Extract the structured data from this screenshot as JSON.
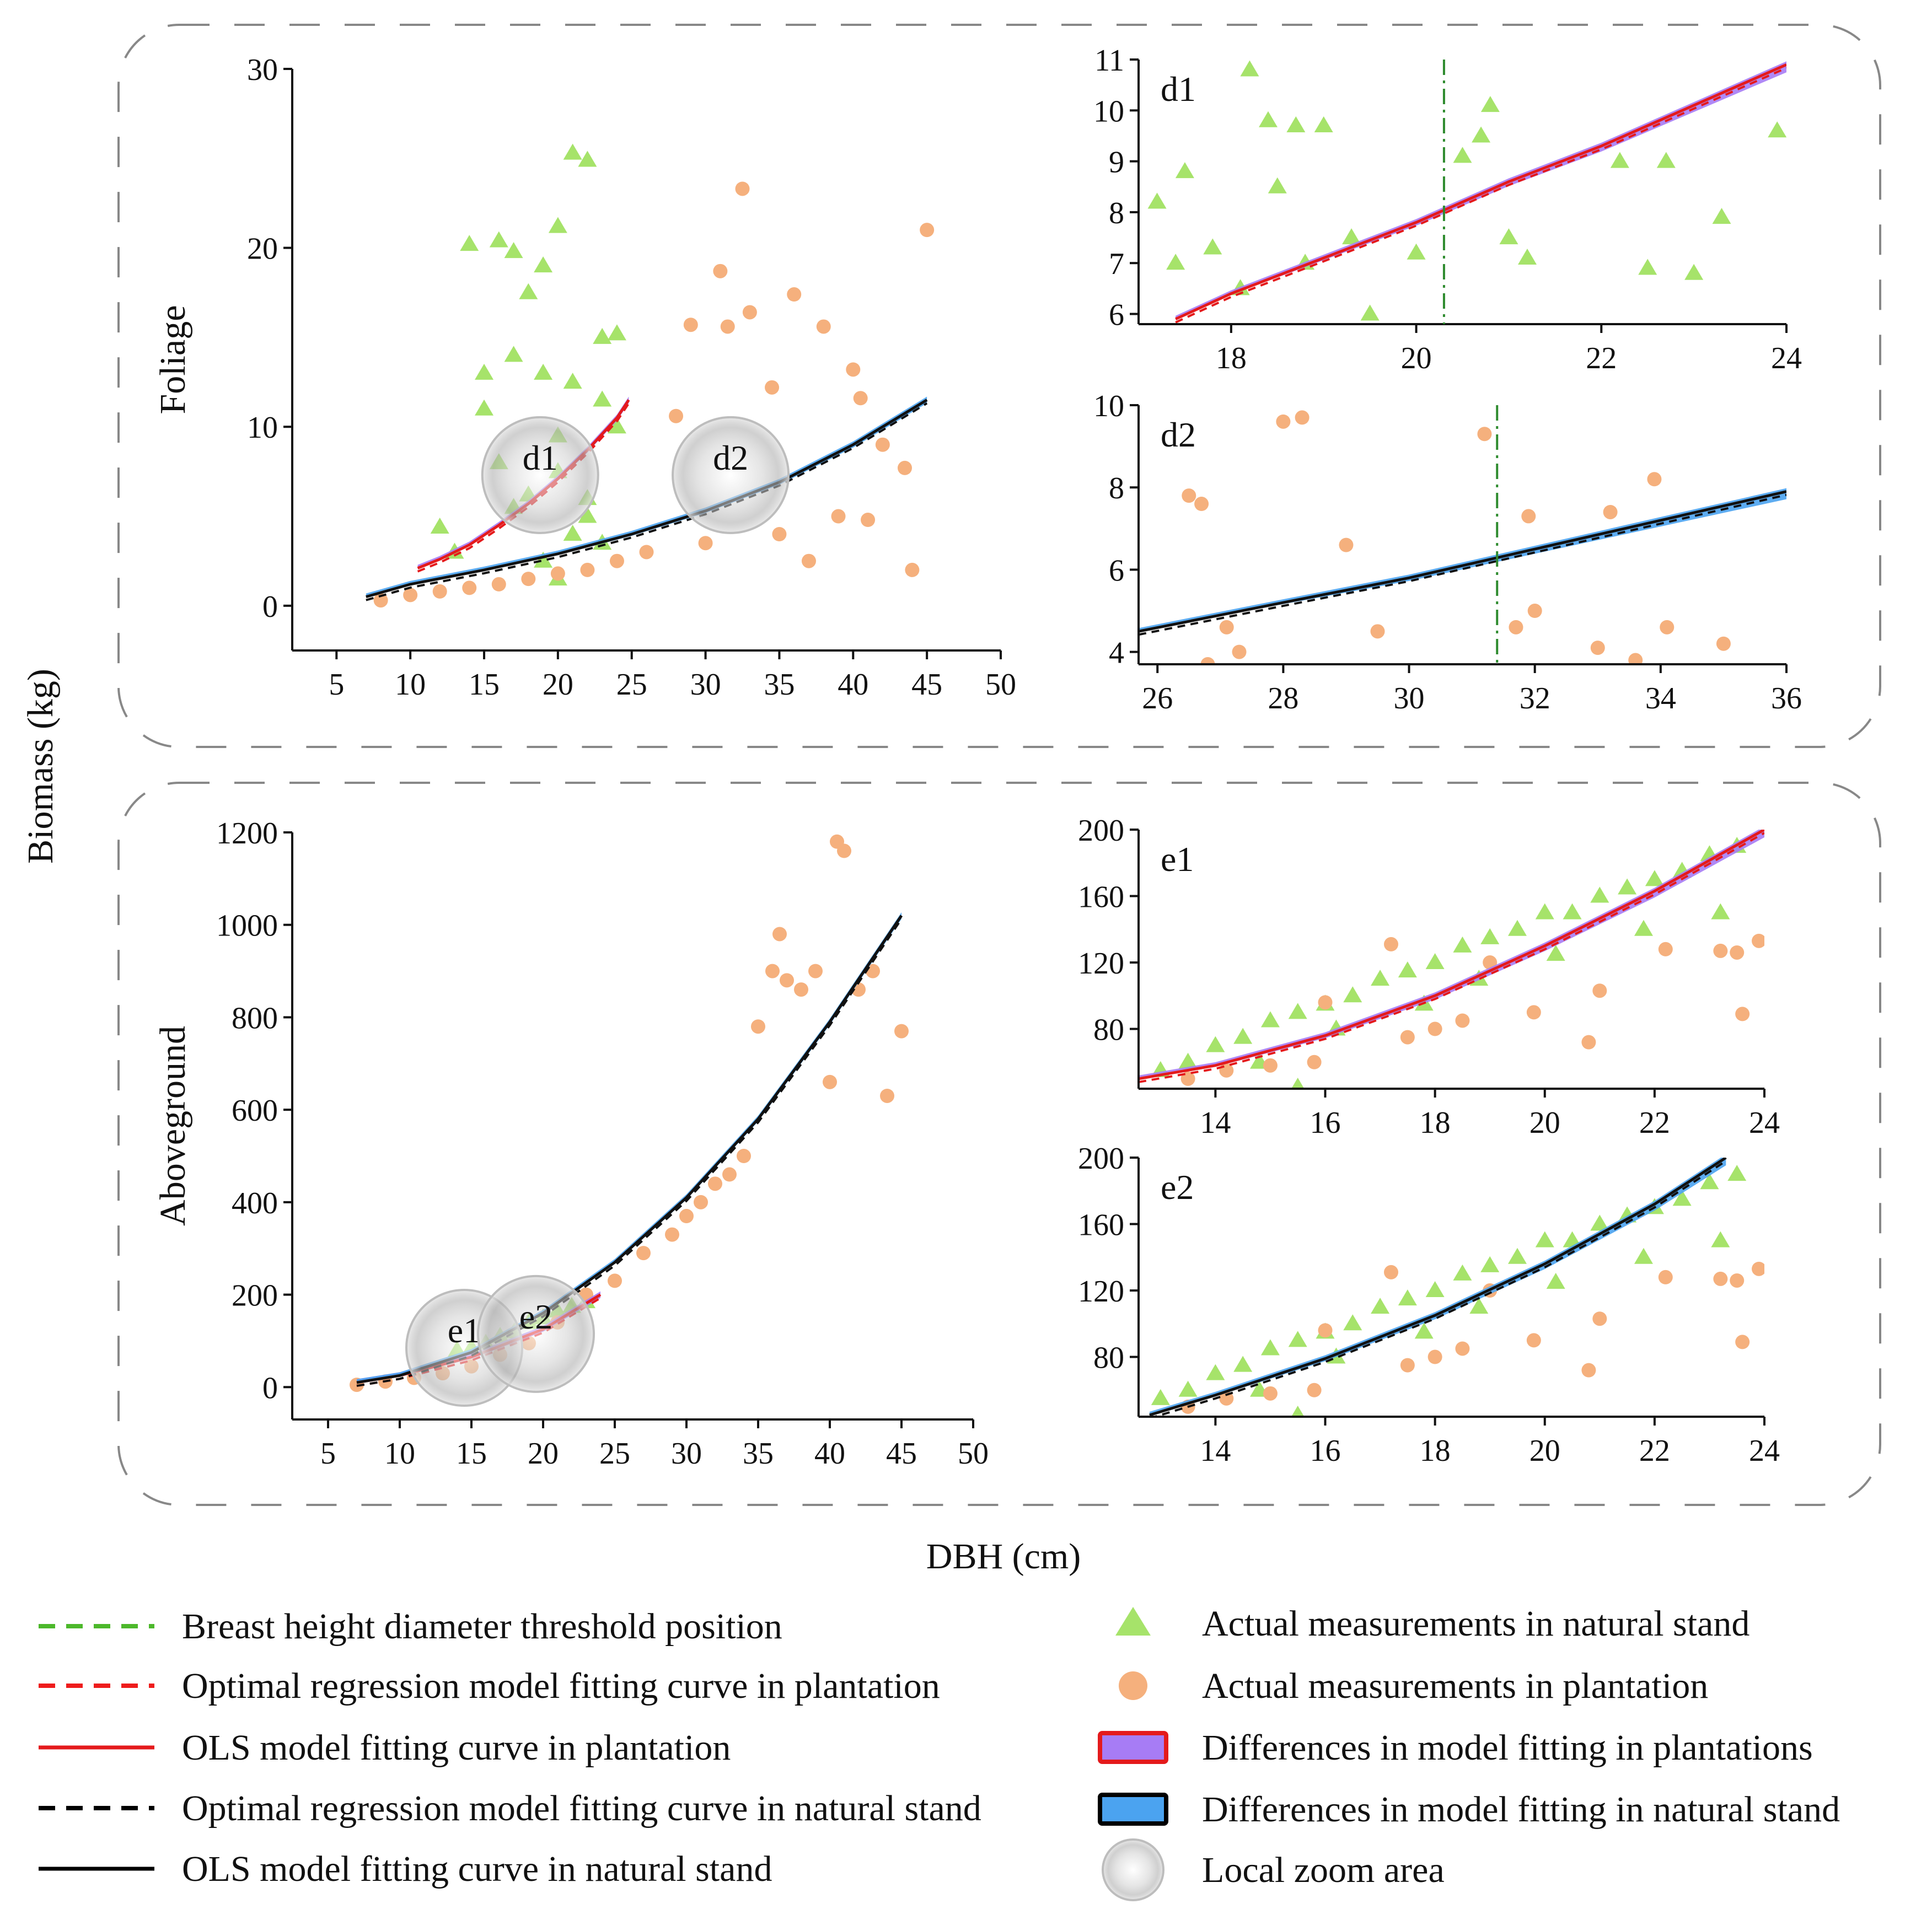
{
  "labels": {
    "y_common": "Biomass (kg)",
    "x_common": "DBH (cm)"
  },
  "legend": [
    {
      "id": "threshold",
      "label": "Breast height diameter threshold position",
      "kind": "dash",
      "color": "#4cb82b"
    },
    {
      "id": "opt_plant",
      "label": "Optimal regression model fitting curve in plantation",
      "kind": "dash",
      "color": "#ee1c1c"
    },
    {
      "id": "ols_plant",
      "label": "OLS model fitting curve in plantation",
      "kind": "line",
      "color": "#e41a1c"
    },
    {
      "id": "opt_nat",
      "label": "Optimal regression model fitting curve in natural stand",
      "kind": "dash",
      "color": "#000000"
    },
    {
      "id": "ols_nat",
      "label": "OLS model fitting curve in natural stand",
      "kind": "line",
      "color": "#000000"
    },
    {
      "id": "nat_pts",
      "label": "Actual measurements in natural stand",
      "kind": "triangle",
      "color": "#a6e36a"
    },
    {
      "id": "plant_pts",
      "label": "Actual measurements in plantation",
      "kind": "circle",
      "color": "#f5b07d"
    },
    {
      "id": "diff_plant",
      "label": "Differences in model fitting in plantations",
      "kind": "box",
      "color": "#a77cf5",
      "edge": "#e41a1c"
    },
    {
      "id": "diff_nat",
      "label": "Differences in model fitting in natural stand",
      "kind": "box",
      "color": "#4ba3f0",
      "edge": "#000000"
    },
    {
      "id": "zoom",
      "label": "Local zoom area",
      "kind": "sphere",
      "color": "#d0d0d0"
    }
  ],
  "chart_data": [
    {
      "id": "foliage",
      "type": "scatter",
      "ylabel": "Foliage",
      "xlabel": "",
      "xlim": [
        2,
        50
      ],
      "ylim": [
        -2.5,
        30
      ],
      "xticks": [
        "5",
        "10",
        "15",
        "20",
        "25",
        "30",
        "35",
        "40",
        "45",
        "50"
      ],
      "yticks": [
        "0",
        "10",
        "20",
        "30"
      ],
      "series": [
        {
          "name": "Actual measurements in natural stand",
          "marker": "triangle",
          "x": [
            14,
            15,
            16,
            17,
            18,
            19,
            20,
            21,
            22,
            23,
            24,
            15,
            17,
            19,
            21,
            23,
            12,
            16,
            20,
            24,
            18,
            20,
            22,
            13,
            17,
            21,
            19,
            22,
            23,
            20
          ],
          "y": [
            20.2,
            13,
            20.4,
            19.8,
            17.5,
            19,
            21.2,
            25.3,
            24.9,
            15,
            15.2,
            11,
            14,
            13,
            12.5,
            11.5,
            4.4,
            8,
            9.5,
            10,
            6.2,
            7.5,
            5,
            3,
            5.5,
            4,
            2.5,
            6,
            3.5,
            1.5
          ]
        },
        {
          "name": "Actual measurements in plantation",
          "marker": "circle",
          "x": [
            8,
            10,
            12,
            14,
            16,
            18,
            20,
            22,
            24,
            26,
            28,
            29,
            31,
            31.5,
            32.5,
            33,
            34.5,
            36,
            38,
            40,
            40.5,
            42,
            43.5,
            44,
            45,
            30,
            35,
            37,
            39,
            41
          ],
          "y": [
            0.3,
            0.6,
            0.8,
            1,
            1.2,
            1.5,
            1.8,
            2,
            2.5,
            3,
            10.6,
            15.7,
            18.7,
            15.6,
            23.3,
            16.4,
            12.2,
            17.4,
            15.6,
            13.2,
            11.6,
            9,
            7.7,
            2,
            21,
            3.5,
            4,
            2.5,
            5,
            4.8
          ]
        },
        {
          "name": "OLS model fitting curve in plantation",
          "type": "line",
          "x": [
            10.5,
            12,
            14,
            16,
            18,
            20,
            22,
            24,
            24.8
          ],
          "y": [
            2.1,
            2.6,
            3.4,
            4.5,
            5.7,
            7.1,
            8.7,
            10.5,
            11.5
          ]
        },
        {
          "name": "OLS model fitting curve in natural stand",
          "type": "line",
          "x": [
            7,
            10,
            15,
            20,
            25,
            30,
            35,
            40,
            45
          ],
          "y": [
            0.5,
            1.2,
            2,
            2.9,
            4,
            5.3,
            6.9,
            9,
            11.5
          ]
        }
      ],
      "zoom_areas": [
        {
          "label": "d1",
          "x": 18.8,
          "y": 7.3
        },
        {
          "label": "d2",
          "x": 31.7,
          "y": 7.3
        }
      ]
    },
    {
      "id": "d1",
      "type": "scatter",
      "tag": "d1",
      "xlim": [
        17,
        24
      ],
      "ylim": [
        5.8,
        11
      ],
      "xticks": [
        "18",
        "20",
        "22",
        "24"
      ],
      "yticks": [
        "6",
        "7",
        "8",
        "9",
        "10",
        "11"
      ],
      "threshold": 20.3,
      "series": [
        {
          "name": "Actual measurements in natural stand",
          "marker": "triangle",
          "x": [
            17.2,
            17.5,
            18.2,
            18.4,
            18.5,
            18.7,
            19,
            17.8,
            18.8,
            19.3,
            19.5,
            20,
            20.5,
            20.7,
            20.8,
            21,
            21.2,
            22.2,
            22.5,
            22.7,
            23,
            23.3,
            23.9,
            17.4,
            18.1
          ],
          "y": [
            8.2,
            8.8,
            10.8,
            9.8,
            8.5,
            9.7,
            9.7,
            7.3,
            7,
            7.5,
            6,
            7.2,
            9.1,
            9.5,
            10.1,
            7.5,
            7.1,
            9,
            6.9,
            9,
            6.8,
            7.9,
            9.6,
            7,
            6.5
          ]
        },
        {
          "name": "OLS model fitting curve in plantation",
          "type": "line",
          "x": [
            17.4,
            18,
            19,
            20,
            21,
            22,
            23,
            24
          ],
          "y": [
            5.9,
            6.4,
            7.1,
            7.8,
            8.6,
            9.3,
            10.1,
            10.9
          ]
        }
      ]
    },
    {
      "id": "d2",
      "type": "scatter",
      "tag": "d2",
      "xlim": [
        25.7,
        36
      ],
      "ylim": [
        3.7,
        10
      ],
      "xticks": [
        "26",
        "28",
        "30",
        "32",
        "34",
        "36"
      ],
      "yticks": [
        "4",
        "6",
        "8",
        "10"
      ],
      "threshold": 31.4,
      "series": [
        {
          "name": "Actual measurements in plantation",
          "marker": "circle",
          "x": [
            26.5,
            26.7,
            27.3,
            28,
            28.3,
            29,
            29.5,
            31.2,
            31.7,
            31.9,
            32,
            33,
            33.2,
            33.6,
            33.9,
            34.1,
            35,
            26.8,
            27.1
          ],
          "y": [
            7.8,
            7.6,
            4,
            9.6,
            9.7,
            6.6,
            4.5,
            9.3,
            4.6,
            7.3,
            5,
            4.1,
            7.4,
            3.8,
            8.2,
            4.6,
            4.2,
            3.7,
            4.6
          ]
        },
        {
          "name": "OLS model fitting curve in natural stand",
          "type": "line",
          "x": [
            25.7,
            28,
            30,
            32,
            34,
            36
          ],
          "y": [
            4.5,
            5.2,
            5.8,
            6.5,
            7.2,
            7.9
          ]
        }
      ]
    },
    {
      "id": "aboveground",
      "type": "scatter",
      "ylabel": "Aboveground",
      "xlabel": "",
      "xlim": [
        2.5,
        50
      ],
      "ylim": [
        -70,
        1200
      ],
      "xticks": [
        "5",
        "10",
        "15",
        "20",
        "25",
        "30",
        "35",
        "40",
        "45",
        "50"
      ],
      "yticks": [
        "0",
        "200",
        "400",
        "600",
        "800",
        "1000",
        "1200"
      ],
      "series": [
        {
          "name": "Actual measurements in natural stand",
          "marker": "triangle",
          "x": [
            14,
            15,
            16,
            17,
            18,
            19,
            20,
            21,
            22,
            23
          ],
          "y": [
            80,
            85,
            95,
            110,
            120,
            140,
            150,
            165,
            175,
            185
          ]
        },
        {
          "name": "Actual measurements in plantation",
          "marker": "circle",
          "x": [
            7,
            9,
            11,
            13,
            15,
            17,
            19,
            21,
            23,
            25,
            27,
            29,
            30,
            31,
            32,
            33,
            34,
            35,
            36,
            36.5,
            37,
            38,
            39,
            40,
            40.5,
            41,
            42,
            43,
            44,
            45
          ],
          "y": [
            5,
            12,
            20,
            30,
            45,
            70,
            95,
            140,
            200,
            230,
            290,
            330,
            370,
            400,
            440,
            460,
            500,
            780,
            900,
            980,
            880,
            860,
            900,
            660,
            1180,
            1160,
            860,
            900,
            630,
            770
          ]
        },
        {
          "name": "OLS model fitting curve in plantation",
          "type": "line",
          "x": [
            7,
            10,
            15,
            20,
            24
          ],
          "y": [
            10,
            25,
            65,
            125,
            200
          ]
        },
        {
          "name": "OLS model fitting curve in natural stand",
          "type": "line",
          "x": [
            7,
            10,
            15,
            20,
            25,
            30,
            35,
            40,
            45
          ],
          "y": [
            10,
            25,
            75,
            160,
            270,
            410,
            580,
            790,
            1020
          ]
        }
      ],
      "zoom_areas": [
        {
          "label": "e1",
          "x": 14.5,
          "y": 85
        },
        {
          "label": "e2",
          "x": 19.5,
          "y": 115
        }
      ]
    },
    {
      "id": "e1",
      "type": "scatter",
      "tag": "e1",
      "xlim": [
        12.6,
        24
      ],
      "ylim": [
        44,
        200
      ],
      "xticks": [
        "14",
        "16",
        "18",
        "20",
        "22",
        "24"
      ],
      "yticks": [
        "80",
        "120",
        "160",
        "200"
      ],
      "series": [
        {
          "name": "Actual measurements in natural stand",
          "marker": "triangle",
          "x": [
            13,
            13.5,
            14,
            14.5,
            15,
            15.5,
            16,
            16.5,
            17,
            17.5,
            18,
            18.5,
            19,
            19.5,
            20,
            20.5,
            21,
            21.5,
            22,
            22.5,
            23,
            23.5,
            14.8,
            16.2,
            17.8,
            18.8,
            20.2,
            21.8,
            23.2,
            15.5
          ],
          "y": [
            55,
            60,
            70,
            75,
            85,
            90,
            95,
            100,
            110,
            115,
            120,
            130,
            135,
            140,
            150,
            150,
            160,
            165,
            170,
            175,
            185,
            190,
            60,
            80,
            95,
            110,
            125,
            140,
            150,
            45
          ]
        },
        {
          "name": "Actual measurements in plantation",
          "marker": "circle",
          "x": [
            13.5,
            14.2,
            15,
            16,
            17.2,
            17.5,
            18,
            19,
            19.8,
            20.8,
            21,
            22.2,
            23.2,
            23.5,
            23.6,
            23.9,
            15.8,
            18.5
          ],
          "y": [
            50,
            55,
            58,
            96,
            131,
            75,
            80,
            120,
            90,
            72,
            103,
            128,
            127,
            126,
            89,
            133,
            60,
            85
          ]
        },
        {
          "name": "OLS model fitting curve in plantation",
          "type": "line",
          "x": [
            12.6,
            14,
            16,
            18,
            20,
            22,
            24
          ],
          "y": [
            50,
            58,
            76,
            100,
            130,
            163,
            200
          ]
        }
      ]
    },
    {
      "id": "e2",
      "type": "scatter",
      "tag": "e2",
      "xlim": [
        12.6,
        24
      ],
      "ylim": [
        44,
        200
      ],
      "xticks": [
        "14",
        "16",
        "18",
        "20",
        "22",
        "24"
      ],
      "yticks": [
        "80",
        "120",
        "160",
        "200"
      ],
      "series": [
        {
          "name": "Actual measurements in natural stand",
          "marker": "triangle",
          "x": [
            13,
            13.5,
            14,
            14.5,
            15,
            15.5,
            16,
            16.5,
            17,
            17.5,
            18,
            18.5,
            19,
            19.5,
            20,
            20.5,
            21,
            21.5,
            22,
            22.5,
            23,
            23.5,
            14.8,
            16.2,
            17.8,
            18.8,
            20.2,
            21.8,
            23.2,
            15.5
          ],
          "y": [
            55,
            60,
            70,
            75,
            85,
            90,
            95,
            100,
            110,
            115,
            120,
            130,
            135,
            140,
            150,
            150,
            160,
            165,
            170,
            175,
            185,
            190,
            60,
            80,
            95,
            110,
            125,
            140,
            150,
            45
          ]
        },
        {
          "name": "Actual measurements in plantation",
          "marker": "circle",
          "x": [
            13.5,
            14.2,
            15,
            16,
            17.2,
            17.5,
            18,
            19,
            19.8,
            20.8,
            21,
            22.2,
            23.2,
            23.5,
            23.6,
            23.9,
            15.8,
            18.5
          ],
          "y": [
            50,
            55,
            58,
            96,
            131,
            75,
            80,
            120,
            90,
            72,
            103,
            128,
            127,
            126,
            89,
            133,
            60,
            85
          ]
        },
        {
          "name": "OLS model fitting curve in natural stand",
          "type": "line",
          "x": [
            12.8,
            14,
            16,
            18,
            20,
            22,
            23.3
          ],
          "y": [
            45,
            57,
            79,
            105,
            136,
            172,
            200
          ]
        }
      ]
    }
  ]
}
